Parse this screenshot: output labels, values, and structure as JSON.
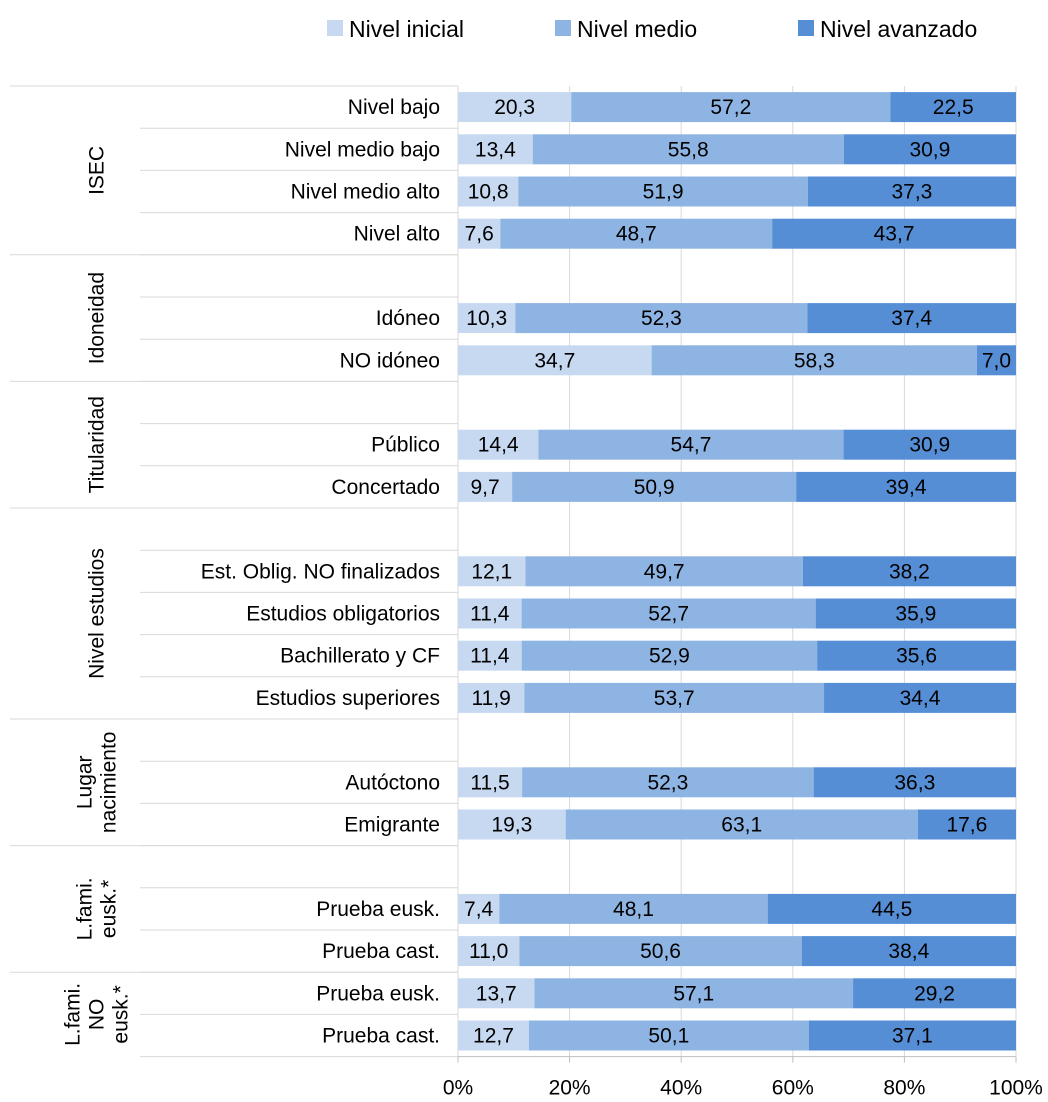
{
  "chart_data": {
    "type": "bar",
    "orientation": "horizontal",
    "stacked": "100%",
    "legend_position": "top",
    "grid": true,
    "xlim": [
      0,
      100
    ],
    "x_ticks": [
      "0%",
      "20%",
      "40%",
      "60%",
      "80%",
      "100%"
    ],
    "series": [
      {
        "name": "Nivel inicial",
        "color": "#c6d9f1"
      },
      {
        "name": "Nivel medio",
        "color": "#8eb4e3"
      },
      {
        "name": "Nivel avanzado",
        "color": "#558ed5"
      }
    ],
    "groups": [
      {
        "label": [
          "ISEC"
        ],
        "rows": [
          {
            "category": "Nivel bajo",
            "values": [
              20.3,
              57.2,
              22.5
            ],
            "labels": [
              "20,3",
              "57,2",
              "22,5"
            ]
          },
          {
            "category": "Nivel medio bajo",
            "values": [
              13.4,
              55.8,
              30.9
            ],
            "labels": [
              "13,4",
              "55,8",
              "30,9"
            ]
          },
          {
            "category": "Nivel medio alto",
            "values": [
              10.8,
              51.9,
              37.3
            ],
            "labels": [
              "10,8",
              "51,9",
              "37,3"
            ]
          },
          {
            "category": "Nivel alto",
            "values": [
              7.6,
              48.7,
              43.7
            ],
            "labels": [
              "7,6",
              "48,7",
              "43,7"
            ]
          }
        ]
      },
      {
        "label": [
          "Idoneidad"
        ],
        "rows": [
          {
            "category": "",
            "values": null,
            "labels": null
          },
          {
            "category": "Idóneo",
            "values": [
              10.3,
              52.3,
              37.4
            ],
            "labels": [
              "10,3",
              "52,3",
              "37,4"
            ]
          },
          {
            "category": "NO idóneo",
            "values": [
              34.7,
              58.3,
              7.0
            ],
            "labels": [
              "34,7",
              "58,3",
              "7,0"
            ]
          }
        ]
      },
      {
        "label": [
          "Titularidad"
        ],
        "rows": [
          {
            "category": "",
            "values": null,
            "labels": null
          },
          {
            "category": "Público",
            "values": [
              14.4,
              54.7,
              30.9
            ],
            "labels": [
              "14,4",
              "54,7",
              "30,9"
            ]
          },
          {
            "category": "Concertado",
            "values": [
              9.7,
              50.9,
              39.4
            ],
            "labels": [
              "9,7",
              "50,9",
              "39,4"
            ]
          }
        ]
      },
      {
        "label": [
          "Nivel estudios"
        ],
        "rows": [
          {
            "category": "",
            "values": null,
            "labels": null
          },
          {
            "category": "Est. Oblig. NO finalizados",
            "values": [
              12.1,
              49.7,
              38.2
            ],
            "labels": [
              "12,1",
              "49,7",
              "38,2"
            ]
          },
          {
            "category": "Estudios obligatorios",
            "values": [
              11.4,
              52.7,
              35.9
            ],
            "labels": [
              "11,4",
              "52,7",
              "35,9"
            ]
          },
          {
            "category": "Bachillerato y CF",
            "values": [
              11.4,
              52.9,
              35.6
            ],
            "labels": [
              "11,4",
              "52,9",
              "35,6"
            ]
          },
          {
            "category": "Estudios superiores",
            "values": [
              11.9,
              53.7,
              34.4
            ],
            "labels": [
              "11,9",
              "53,7",
              "34,4"
            ]
          }
        ]
      },
      {
        "label": [
          "Lugar",
          "nacimiento"
        ],
        "rows": [
          {
            "category": "",
            "values": null,
            "labels": null
          },
          {
            "category": "Autóctono",
            "values": [
              11.5,
              52.3,
              36.3
            ],
            "labels": [
              "11,5",
              "52,3",
              "36,3"
            ]
          },
          {
            "category": "Emigrante",
            "values": [
              19.3,
              63.1,
              17.6
            ],
            "labels": [
              "19,3",
              "63,1",
              "17,6"
            ]
          }
        ]
      },
      {
        "label": [
          "L.fami.",
          "eusk.*"
        ],
        "rows": [
          {
            "category": "",
            "values": null,
            "labels": null
          },
          {
            "category": "Prueba eusk.",
            "values": [
              7.4,
              48.1,
              44.5
            ],
            "labels": [
              "7,4",
              "48,1",
              "44,5"
            ]
          },
          {
            "category": "Prueba cast.",
            "values": [
              11.0,
              50.6,
              38.4
            ],
            "labels": [
              "11,0",
              "50,6",
              "38,4"
            ]
          }
        ]
      },
      {
        "label": [
          "L.fami.",
          "NO",
          "eusk.*"
        ],
        "rows": [
          {
            "category": "Prueba eusk.",
            "values": [
              13.7,
              57.1,
              29.2
            ],
            "labels": [
              "13,7",
              "57,1",
              "29,2"
            ]
          },
          {
            "category": "Prueba cast.",
            "values": [
              12.7,
              50.1,
              37.1
            ],
            "labels": [
              "12,7",
              "50,1",
              "37,1"
            ]
          }
        ]
      }
    ]
  }
}
